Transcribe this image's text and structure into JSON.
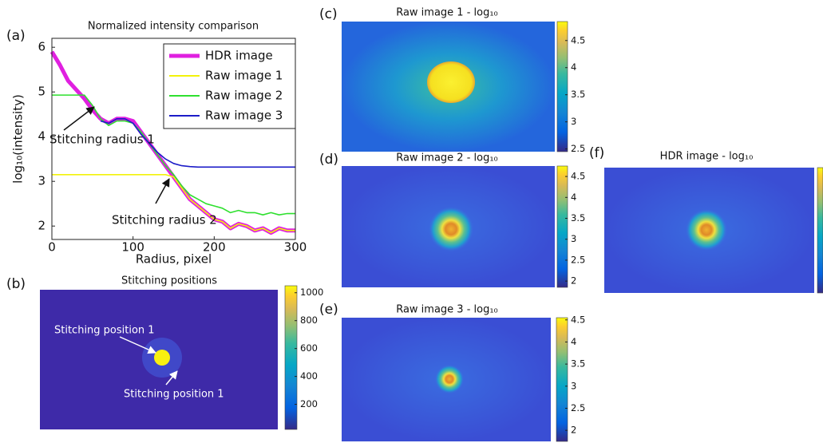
{
  "chart_data": [
    {
      "type": "line",
      "panel_label": "(a)",
      "title": "Normalized intensity comparison",
      "xlabel": "Radius, pixel",
      "ylabel": "log₁₀(intensity)",
      "x": [
        0,
        10,
        20,
        30,
        40,
        50,
        60,
        70,
        80,
        90,
        100,
        110,
        120,
        130,
        140,
        150,
        160,
        170,
        180,
        190,
        200,
        210,
        220,
        230,
        240,
        250,
        260,
        270,
        280,
        290,
        300
      ],
      "xlim": [
        0,
        300
      ],
      "xticks": [
        0,
        100,
        200,
        300
      ],
      "ylim": [
        1.7,
        6.2
      ],
      "yticks": [
        2,
        3,
        4,
        5,
        6
      ],
      "series": [
        {
          "name": "HDR image",
          "color": "#e020e0",
          "values": [
            5.9,
            5.6,
            5.25,
            5.05,
            4.85,
            4.6,
            4.4,
            4.3,
            4.4,
            4.4,
            4.35,
            4.1,
            3.85,
            3.6,
            3.35,
            3.1,
            2.85,
            2.6,
            2.45,
            2.3,
            2.15,
            2.1,
            1.95,
            2.05,
            2.0,
            1.9,
            1.95,
            1.85,
            1.95,
            1.9,
            1.9
          ]
        },
        {
          "name": "Raw image 1",
          "color": "#f2f20a",
          "values": [
            3.15,
            3.15,
            3.15,
            3.15,
            3.15,
            3.15,
            3.15,
            3.15,
            3.15,
            3.15,
            3.15,
            3.15,
            3.15,
            3.15,
            3.15,
            3.1,
            2.85,
            2.6,
            2.45,
            2.3,
            2.15,
            2.1,
            1.95,
            2.05,
            2.0,
            1.9,
            1.95,
            1.85,
            1.95,
            1.9,
            1.9
          ]
        },
        {
          "name": "Raw image 2",
          "color": "#2fe02f",
          "values": [
            4.93,
            4.93,
            4.93,
            4.93,
            4.93,
            4.7,
            4.4,
            4.25,
            4.35,
            4.35,
            4.3,
            4.1,
            3.85,
            3.6,
            3.35,
            3.15,
            2.9,
            2.7,
            2.6,
            2.5,
            2.45,
            2.4,
            2.3,
            2.35,
            2.3,
            2.3,
            2.25,
            2.3,
            2.25,
            2.28,
            2.28
          ]
        },
        {
          "name": "Raw image 3",
          "color": "#1c1cc8",
          "values": [
            null,
            null,
            null,
            null,
            null,
            null,
            4.35,
            4.3,
            4.4,
            4.4,
            4.3,
            4.05,
            3.85,
            3.65,
            3.5,
            3.4,
            3.35,
            3.33,
            3.32,
            3.32,
            3.32,
            3.32,
            3.32,
            3.32,
            3.32,
            3.32,
            3.32,
            3.32,
            3.32,
            3.32,
            3.32
          ]
        }
      ],
      "annotations": [
        "Stitching radius 1",
        "Stitching radius 2"
      ]
    },
    {
      "type": "heatmap",
      "panel_label": "(b)",
      "title": "Stitching positions",
      "clim": [
        20,
        1050
      ],
      "cticks": [
        200,
        400,
        600,
        800,
        1000
      ],
      "annotations": [
        "Stitching position 1",
        "Stitching position 1"
      ]
    },
    {
      "type": "heatmap",
      "panel_label": "(c)",
      "title": "Raw image 1 - log₁₀",
      "clim": [
        2.45,
        4.85
      ],
      "cticks": [
        2.5,
        3,
        3.5,
        4,
        4.5
      ]
    },
    {
      "type": "heatmap",
      "panel_label": "(d)",
      "title": "Raw image 2 - log₁₀",
      "clim": [
        1.85,
        4.75
      ],
      "cticks": [
        2,
        2.5,
        3,
        3.5,
        4,
        4.5
      ]
    },
    {
      "type": "heatmap",
      "panel_label": "(e)",
      "title": "Raw image 3 - log₁₀",
      "clim": [
        1.75,
        4.55
      ],
      "cticks": [
        2,
        2.5,
        3,
        3.5,
        4,
        4.5
      ]
    },
    {
      "type": "heatmap",
      "panel_label": "(f)",
      "title": "HDR image - log₁₀"
    }
  ]
}
